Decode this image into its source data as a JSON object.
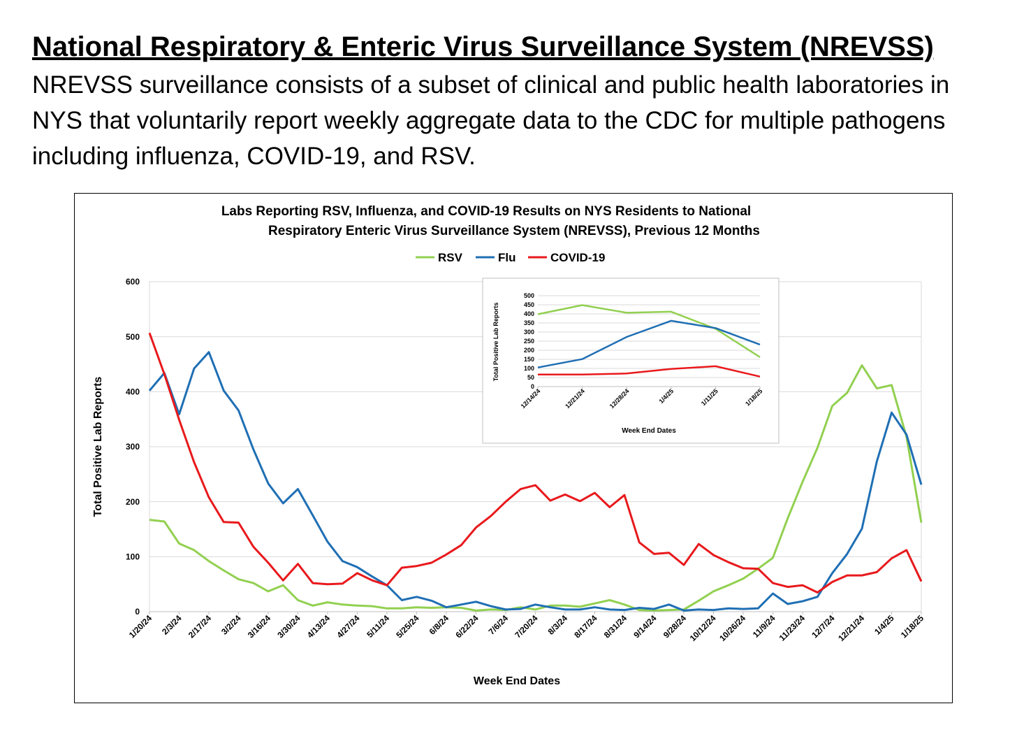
{
  "header": {
    "title": "National Respiratory & Enteric Virus Surveillance System (NREVSS)",
    "description": "NREVSS surveillance consists of a subset of clinical and public health laboratories in NYS that voluntarily report weekly aggregate data to the CDC for multiple pathogens including influenza, COVID-19, and RSV."
  },
  "colors": {
    "RSV": "#92d050",
    "Flu": "#1f6fb4",
    "COVID-19": "#e8191c"
  },
  "chart_data": [
    {
      "type": "line",
      "title_line1": "Labs Reporting RSV, Influenza, and COVID-19 Results on NYS Residents to National",
      "title_line2": "Respiratory Enteric Virus Surveillance System (NREVSS), Previous 12 Months",
      "xlabel": "Week End Dates",
      "ylabel": "Total Positive Lab Reports",
      "ylim": [
        0,
        600
      ],
      "yticks": [
        "0",
        "100",
        "200",
        "300",
        "400",
        "500",
        "600"
      ],
      "legend": [
        "RSV",
        "Flu",
        "COVID-19"
      ],
      "legend_position": "top-center",
      "grid": true,
      "x": [
        "1/20/24",
        "1/27/24",
        "2/3/24",
        "2/10/24",
        "2/17/24",
        "2/24/24",
        "3/2/24",
        "3/9/24",
        "3/16/24",
        "3/23/24",
        "3/30/24",
        "4/6/24",
        "4/13/24",
        "4/20/24",
        "4/27/24",
        "5/4/24",
        "5/11/24",
        "5/18/24",
        "5/25/24",
        "6/1/24",
        "6/8/24",
        "6/15/24",
        "6/22/24",
        "6/29/24",
        "7/6/24",
        "7/13/24",
        "7/20/24",
        "7/27/24",
        "8/3/24",
        "8/10/24",
        "8/17/24",
        "8/24/24",
        "8/31/24",
        "9/7/24",
        "9/14/24",
        "9/21/24",
        "9/28/24",
        "10/5/24",
        "10/12/24",
        "10/19/24",
        "10/26/24",
        "11/2/24",
        "11/9/24",
        "11/16/24",
        "11/23/24",
        "11/30/24",
        "12/7/24",
        "12/14/24",
        "12/21/24",
        "12/28/24",
        "1/4/25",
        "1/11/25",
        "1/18/25"
      ],
      "tick_labels": [
        "1/20/24",
        "2/3/24",
        "2/17/24",
        "3/2/24",
        "3/16/24",
        "3/30/24",
        "4/13/24",
        "4/27/24",
        "5/11/24",
        "5/25/24",
        "6/8/24",
        "6/22/24",
        "7/6/24",
        "7/20/24",
        "8/3/24",
        "8/17/24",
        "8/31/24",
        "9/14/24",
        "9/28/24",
        "10/12/24",
        "10/26/24",
        "11/9/24",
        "11/23/24",
        "12/7/24",
        "12/21/24",
        "1/4/25",
        "1/18/25"
      ],
      "series": [
        {
          "name": "RSV",
          "values": [
            167,
            164,
            124,
            112,
            92,
            75,
            59,
            52,
            37,
            48,
            21,
            11,
            17,
            13,
            11,
            10,
            6,
            6,
            8,
            7,
            8,
            7,
            2,
            4,
            3,
            8,
            4,
            11,
            11,
            9,
            15,
            21,
            13,
            3,
            2,
            3,
            4,
            20,
            37,
            48,
            60,
            78,
            98,
            170,
            236,
            298,
            374,
            398,
            448,
            406,
            412,
            318,
            162
          ]
        },
        {
          "name": "Flu",
          "values": [
            402,
            434,
            359,
            442,
            472,
            402,
            366,
            295,
            233,
            197,
            223,
            175,
            127,
            92,
            81,
            64,
            48,
            21,
            27,
            20,
            8,
            13,
            18,
            10,
            4,
            5,
            13,
            8,
            4,
            4,
            8,
            4,
            3,
            7,
            5,
            13,
            2,
            4,
            3,
            6,
            5,
            6,
            33,
            14,
            19,
            27,
            70,
            105,
            151,
            273,
            362,
            322,
            231
          ]
        },
        {
          "name": "COVID-19",
          "values": [
            507,
            432,
            349,
            272,
            208,
            163,
            162,
            118,
            89,
            57,
            87,
            52,
            50,
            51,
            70,
            57,
            48,
            80,
            83,
            89,
            104,
            121,
            153,
            174,
            200,
            223,
            230,
            202,
            213,
            201,
            216,
            190,
            212,
            126,
            105,
            107,
            85,
            123,
            103,
            90,
            79,
            78,
            52,
            45,
            48,
            35,
            54,
            66,
            66,
            72,
            97,
            112,
            55
          ]
        }
      ]
    },
    {
      "type": "line",
      "xlabel": "Week End Dates",
      "ylabel": "Total Positive Lab Reports",
      "ylim": [
        0,
        500
      ],
      "yticks": [
        "0",
        "50",
        "100",
        "150",
        "200",
        "250",
        "300",
        "350",
        "400",
        "450",
        "500"
      ],
      "grid": true,
      "x": [
        "12/14/24",
        "12/21/24",
        "12/28/24",
        "1/4/25",
        "1/11/25",
        "1/18/25"
      ],
      "series": [
        {
          "name": "RSV",
          "values": [
            398,
            448,
            406,
            412,
            318,
            162
          ]
        },
        {
          "name": "Flu",
          "values": [
            105,
            151,
            273,
            362,
            322,
            231
          ]
        },
        {
          "name": "COVID-19",
          "values": [
            66,
            66,
            72,
            97,
            112,
            55
          ]
        }
      ]
    }
  ]
}
